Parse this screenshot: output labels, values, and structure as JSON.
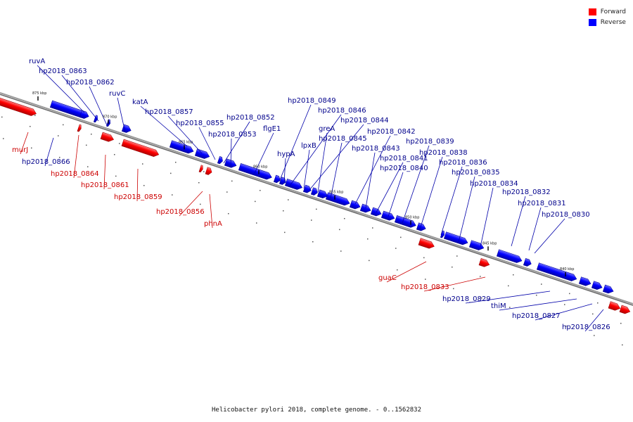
{
  "genome_title": "Helicobacter pylori 2018, complete genome. - 0..1562832",
  "legend": [
    {
      "label": "Forward",
      "color": "#ff0000"
    },
    {
      "label": "Reverse",
      "color": "#0000ff"
    }
  ],
  "colors": {
    "forward": "#ff0000",
    "reverse": "#0000ff",
    "forward_label": "#cc0000",
    "reverse_label": "#00008b",
    "backbone": "#7f7f7f"
  },
  "ticks": [
    "875 kbp",
    "870 kbp",
    "865 kbp",
    "860 kbp",
    "855 kbp",
    "850 kbp",
    "845 kbp",
    "840 kbp"
  ],
  "genes_forward": [
    "murJ",
    "hp2018_0864",
    "hp2018_0861",
    "hp2018_0859",
    "hp2018_0856",
    "phnA",
    "guaC",
    "hp2018_0833"
  ],
  "genes_reverse": [
    "ruvA",
    "hp2018_0863",
    "hp2018_0862",
    "ruvC",
    "katA",
    "hp2018_0857",
    "hp2018_0855",
    "hp2018_0852",
    "hp2018_0853",
    "flgE1",
    "hp2018_0849",
    "hp2018_0846",
    "hp2018_0844",
    "greA",
    "hp2018_0845",
    "hp2018_0842",
    "hypA",
    "lpxB",
    "hp2018_0843",
    "hp2018_0841",
    "hp2018_0840",
    "hp2018_0839",
    "hp2018_0838",
    "hp2018_0836",
    "hp2018_0835",
    "hp2018_0834",
    "hp2018_0832",
    "hp2018_0831",
    "hp2018_0830",
    "hp2018_0866",
    "hp2018_0829",
    "thiM",
    "hp2018_0827",
    "hp2018_0826"
  ]
}
